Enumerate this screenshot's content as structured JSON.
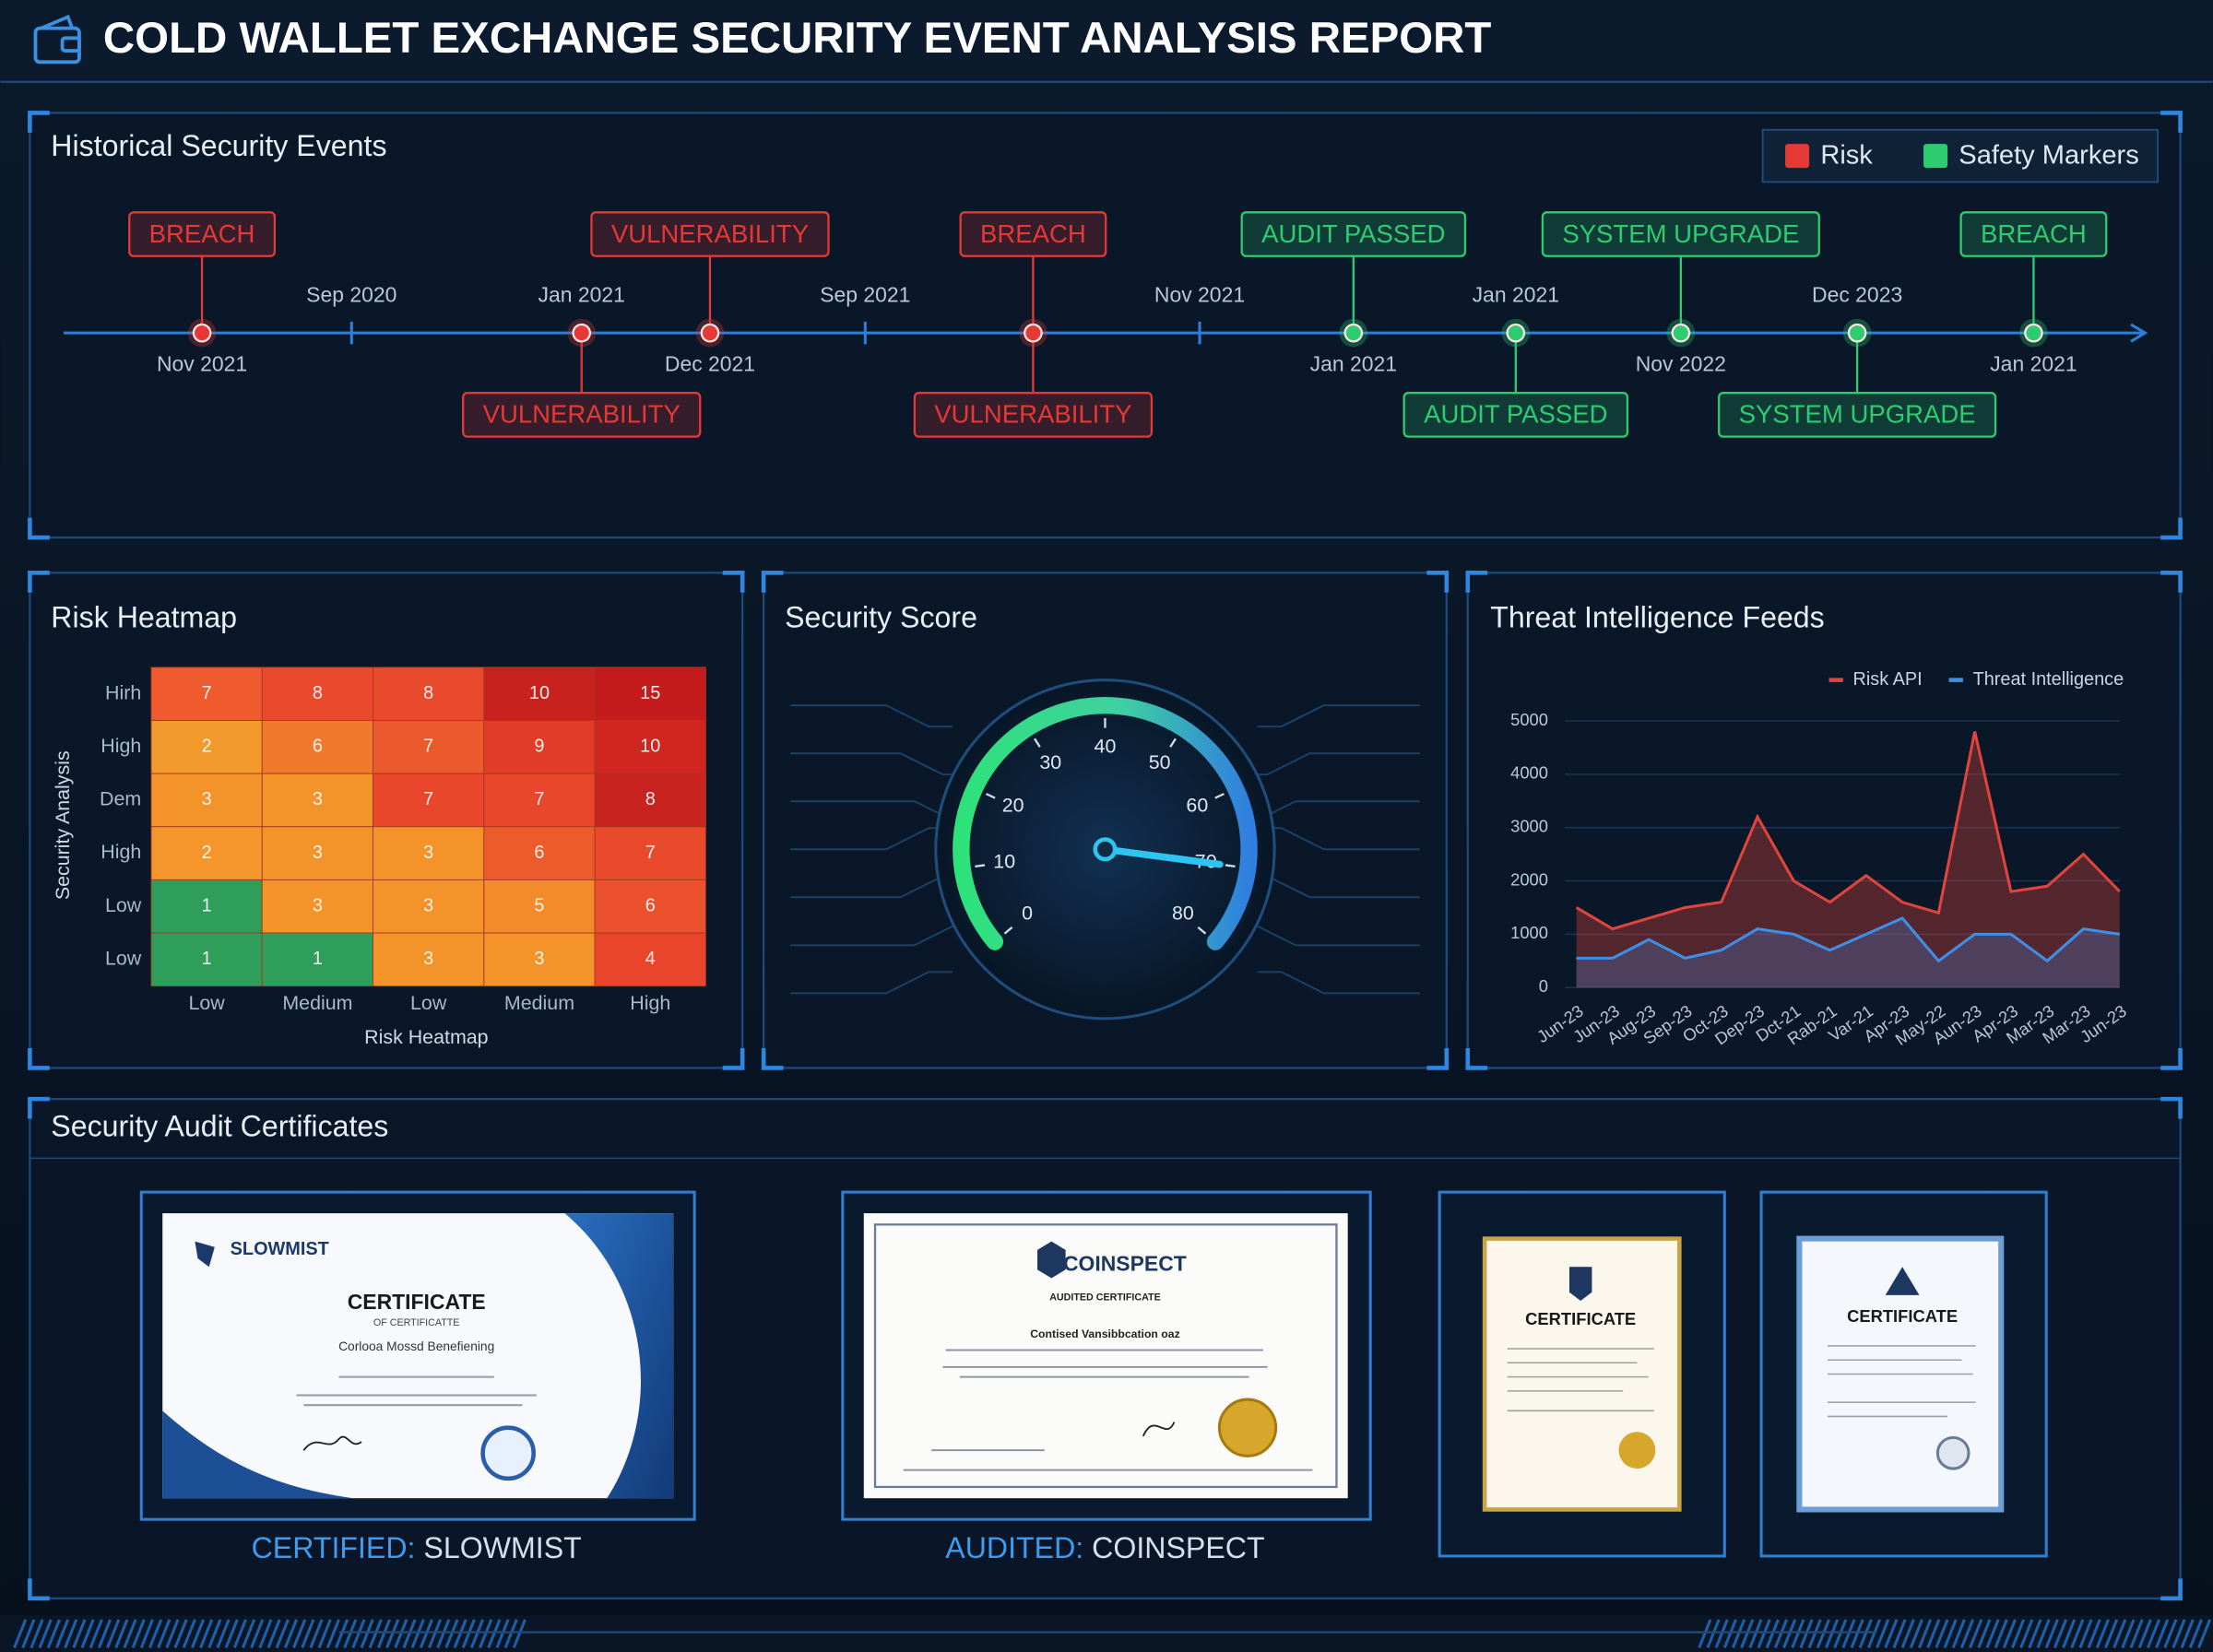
{
  "header": {
    "title": "COLD WALLET EXCHANGE SECURITY EVENT ANALYSIS REPORT"
  },
  "timeline": {
    "title": "Historical Security Events",
    "legend": [
      {
        "label": "Risk",
        "color": "#e53935"
      },
      {
        "label": "Safety Markers",
        "color": "#2ecc71"
      }
    ],
    "axis_ticks": [
      "Sep 2020",
      "Sep 2021",
      "Nov 2021"
    ],
    "events": [
      {
        "color": "#e53935",
        "above": "BREACH",
        "date": "Nov 2021"
      },
      {
        "color": "#e53935",
        "below": "VULNERABILITY",
        "date": "Jan 2021"
      },
      {
        "color": "#e53935",
        "above": "VULNERABILITY",
        "date": "Dec 2021"
      },
      {
        "color": "#e53935",
        "above": "BREACH",
        "below": "VULNERABILITY"
      },
      {
        "color": "#2ecc71",
        "above": "AUDIT PASSED",
        "date": "Jan 2021"
      },
      {
        "color": "#2ecc71",
        "below": "AUDIT PASSED",
        "date": "Jan 2021"
      },
      {
        "color": "#2ecc71",
        "above": "SYSTEM UPGRADE",
        "date": "Nov 2022"
      },
      {
        "color": "#2ecc71",
        "below": "SYSTEM UPGRADE",
        "date": "Dec 2023"
      },
      {
        "color": "#2ecc71",
        "above": "BREACH",
        "date": "Jan 2021"
      }
    ]
  },
  "heatmap": {
    "title": "Risk Heatmap",
    "x_label": "Risk Heatmap",
    "y_label": "Security Analysis",
    "rows": [
      "Hirh",
      "High",
      "Dem",
      "High",
      "Low",
      "Low"
    ],
    "columns": [
      "Low",
      "Medium",
      "Low",
      "Medium",
      "High"
    ],
    "values": [
      [
        7,
        8,
        8,
        10,
        15
      ],
      [
        2,
        6,
        7,
        9,
        10
      ],
      [
        3,
        3,
        7,
        7,
        8
      ],
      [
        2,
        3,
        3,
        6,
        7
      ],
      [
        1,
        3,
        3,
        5,
        6
      ],
      [
        1,
        1,
        3,
        3,
        4
      ]
    ],
    "colors": [
      [
        "#ef5a2e",
        "#ea4a2c",
        "#ea4a2c",
        "#c8221f",
        "#c41c1c"
      ],
      [
        "#f39a2c",
        "#f07a2c",
        "#eb5a2c",
        "#e23c28",
        "#d12520"
      ],
      [
        "#f4932a",
        "#f4932a",
        "#e8472b",
        "#e8472b",
        "#c92320"
      ],
      [
        "#f4962b",
        "#f4932a",
        "#f4932a",
        "#ec5b2c",
        "#e84a2b"
      ],
      [
        "#2f9e5a",
        "#f4932a",
        "#f4932a",
        "#f38a2b",
        "#ea512c"
      ],
      [
        "#2f9e5a",
        "#2f9e5a",
        "#f4932a",
        "#f4932a",
        "#e8452b"
      ]
    ]
  },
  "gauge": {
    "title": "Security Score",
    "value": 70,
    "range": [
      0,
      80
    ],
    "ticks": [
      0,
      10,
      20,
      30,
      40,
      50,
      60,
      70,
      80
    ]
  },
  "threat_chart": {
    "type": "line",
    "title": "Threat Intelligence Feeds",
    "categories": [
      "Jun-23",
      "Jun-23",
      "Aug-23",
      "Sep-23",
      "Oct-23",
      "Dep-23",
      "Dct-21",
      "Rab-21",
      "Var-21",
      "Apr-23",
      "May-22",
      "Aun-23",
      "Apr-23",
      "Mar-23",
      "Mar-23",
      "Jun-23"
    ],
    "series": [
      {
        "name": "Risk API",
        "color": "#e0443c",
        "values": [
          1500,
          1100,
          1300,
          1500,
          1600,
          3200,
          2000,
          1600,
          2100,
          1600,
          1400,
          4800,
          1800,
          1900,
          2500,
          1800
        ]
      },
      {
        "name": "Threat Intelligence",
        "color": "#3f8ee8",
        "values": [
          550,
          550,
          900,
          550,
          700,
          1100,
          1000,
          700,
          1000,
          1300,
          500,
          1000,
          1000,
          500,
          1100,
          1000
        ]
      }
    ],
    "ylim": [
      0,
      5000
    ],
    "yticks": [
      0,
      1000,
      2000,
      3000,
      4000,
      5000
    ]
  },
  "certificates": {
    "title": "Security Audit Certificates",
    "items": [
      {
        "brand": "SLOWMIST",
        "heading": "CERTIFICATE",
        "subheading": "OF CERTIFICATTE",
        "recipient": "Corlooa Mossd Benefiening",
        "caption_prefix": "CERTIFIED:",
        "caption_name": "SLOWMIST"
      },
      {
        "brand": "COINSPECT",
        "heading": "AUDITED CERTIFICATE",
        "recipient": "Contised Vansibbcation oaz",
        "caption_prefix": "AUDITED:",
        "caption_name": "COINSPECT"
      },
      {
        "heading": "CERTIFICATE"
      },
      {
        "heading": "CERTIFICATE"
      }
    ]
  }
}
